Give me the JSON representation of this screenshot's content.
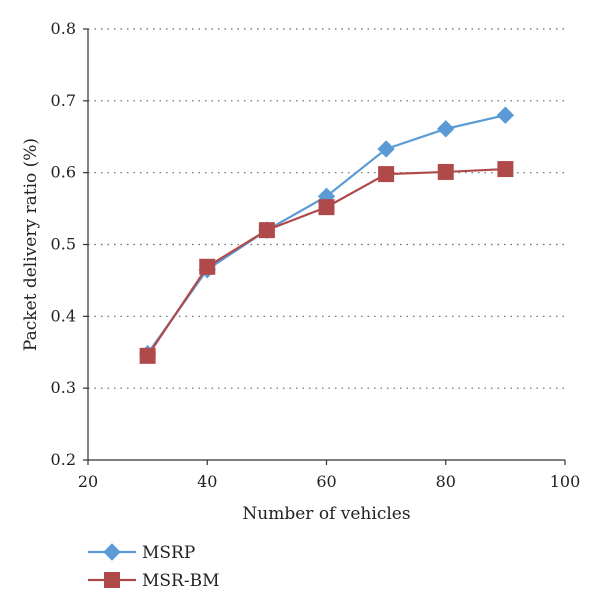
{
  "chart_data": {
    "type": "line",
    "xlabel": "Number of vehicles",
    "ylabel": "Packet delivery ratio (%)",
    "xlim": [
      20,
      100
    ],
    "ylim": [
      0.2,
      0.8
    ],
    "x_ticks": [
      "20",
      "40",
      "60",
      "80",
      "100"
    ],
    "y_ticks": [
      "0.2",
      "0.3",
      "0.4",
      "0.5",
      "0.6",
      "0.7",
      "0.8"
    ],
    "x_tick_values": [
      20,
      40,
      60,
      80,
      100
    ],
    "y_tick_values": [
      0.2,
      0.3,
      0.4,
      0.5,
      0.6,
      0.7,
      0.8
    ],
    "grid": "horizontal-dotted",
    "legend_position": "bottom-left",
    "x": [
      30,
      40,
      50,
      60,
      70,
      80,
      90
    ],
    "series": [
      {
        "name": "MSRP",
        "marker": "diamond",
        "color": "#5b9bd5",
        "values": [
          0.348,
          0.465,
          0.52,
          0.567,
          0.633,
          0.661,
          0.68
        ]
      },
      {
        "name": "MSR-BM",
        "marker": "square",
        "color": "#b04a4a",
        "values": [
          0.345,
          0.469,
          0.52,
          0.552,
          0.598,
          0.601,
          0.605
        ]
      }
    ]
  }
}
